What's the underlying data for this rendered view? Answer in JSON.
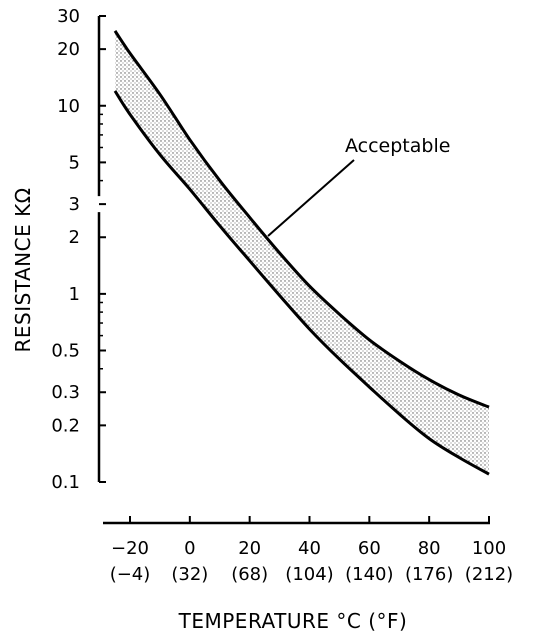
{
  "chart_data": {
    "type": "area",
    "title": "",
    "xlabel": "TEMPERATURE °C (°F)",
    "ylabel": "RESISTANCE KΩ",
    "y_scale": "log",
    "xlim": [
      -25,
      100
    ],
    "ylim": [
      0.1,
      30
    ],
    "x_ticks": [
      {
        "value": -20,
        "label": "−20",
        "sub": "(−4)"
      },
      {
        "value": 0,
        "label": "0",
        "sub": "(32)"
      },
      {
        "value": 20,
        "label": "20",
        "sub": "(68)"
      },
      {
        "value": 40,
        "label": "40",
        "sub": "(104)"
      },
      {
        "value": 60,
        "label": "60",
        "sub": "(140)"
      },
      {
        "value": 80,
        "label": "80",
        "sub": "(176)"
      },
      {
        "value": 100,
        "label": "100",
        "sub": "(212)"
      }
    ],
    "y_ticks": [
      {
        "value": 30,
        "label": "30"
      },
      {
        "value": 20,
        "label": "20"
      },
      {
        "value": 10,
        "label": "10"
      },
      {
        "value": 5,
        "label": "5"
      },
      {
        "value": 3,
        "label": "3"
      },
      {
        "value": 2,
        "label": "2"
      },
      {
        "value": 1,
        "label": "1"
      },
      {
        "value": 0.5,
        "label": "0.5"
      },
      {
        "value": 0.3,
        "label": "0.3"
      },
      {
        "value": 0.2,
        "label": "0.2"
      },
      {
        "value": 0.1,
        "label": "0.1"
      }
    ],
    "series": [
      {
        "x": [
          -25,
          -20,
          -10,
          0,
          10,
          20,
          30,
          40,
          50,
          60,
          70,
          80,
          90,
          100
        ],
        "y": [
          25,
          19,
          11.5,
          6.6,
          4.0,
          2.55,
          1.65,
          1.1,
          0.78,
          0.57,
          0.44,
          0.35,
          0.29,
          0.25
        ]
      },
      {
        "x": [
          -25,
          -20,
          -10,
          0,
          10,
          20,
          30,
          40,
          50,
          60,
          70,
          80,
          90,
          100
        ],
        "y": [
          12,
          9.0,
          5.5,
          3.6,
          2.3,
          1.5,
          0.98,
          0.65,
          0.45,
          0.32,
          0.23,
          0.17,
          0.135,
          0.11
        ]
      }
    ],
    "band": {
      "label": "Acceptable",
      "between_series": [
        0,
        1
      ]
    },
    "annotations": [
      {
        "text": "Acceptable",
        "points_to": {
          "x": 26,
          "y": 1.95
        }
      }
    ],
    "grid": false,
    "legend": "none",
    "colors": {
      "line": "#000000",
      "band_fill": "#cfcfcf",
      "background": "#ffffff"
    }
  }
}
